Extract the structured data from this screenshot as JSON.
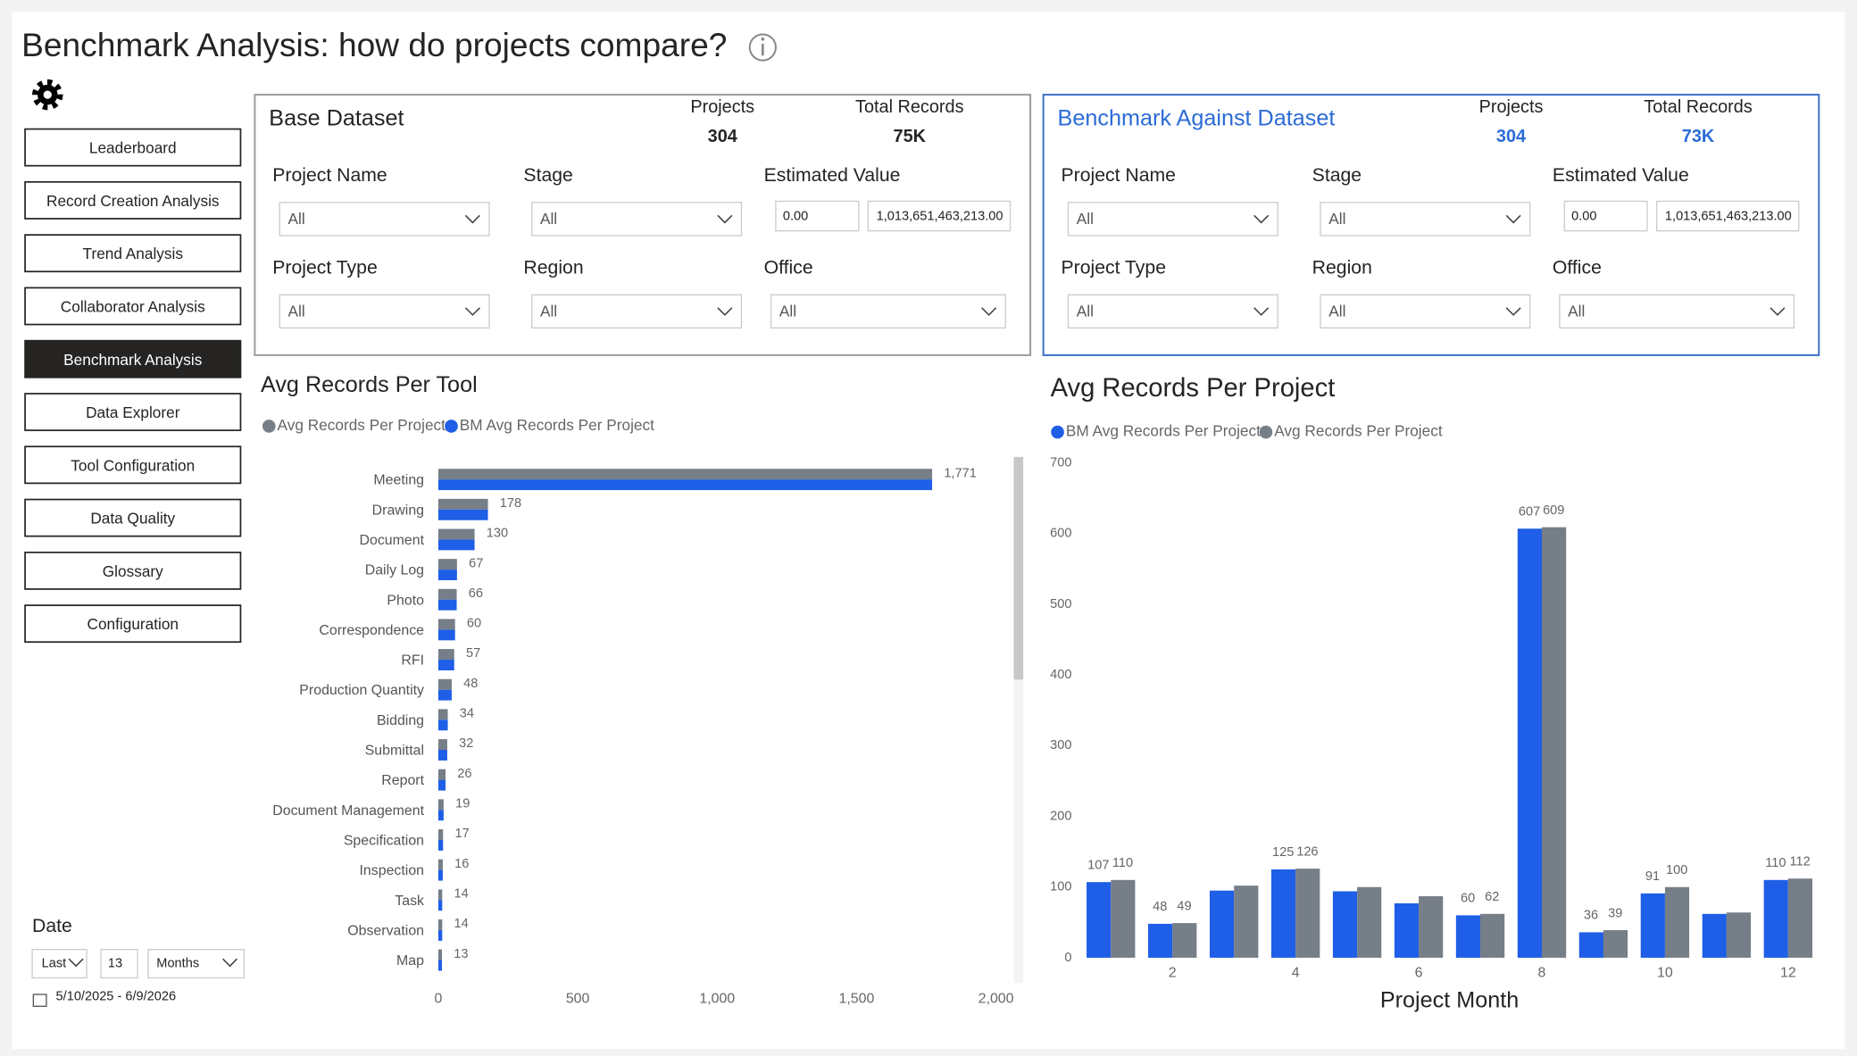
{
  "header": {
    "title": "Benchmark Analysis: how do projects compare?"
  },
  "nav": {
    "items": [
      "Leaderboard",
      "Record Creation Analysis",
      "Trend Analysis",
      "Collaborator Analysis",
      "Benchmark Analysis",
      "Data Explorer",
      "Tool Configuration",
      "Data Quality",
      "Glossary",
      "Configuration"
    ],
    "active": "Benchmark Analysis"
  },
  "date_filter": {
    "label": "Date",
    "mode": "Last",
    "count": "13",
    "unit": "Months",
    "range": "5/10/2025 - 6/9/2026"
  },
  "panels": [
    {
      "title": "Base Dataset",
      "projects_label": "Projects",
      "projects": "304",
      "records_label": "Total Records",
      "records": "75K",
      "filters": [
        {
          "label": "Project Name",
          "value": "All"
        },
        {
          "label": "Stage",
          "value": "All"
        },
        {
          "label": "Estimated Value",
          "min": "0.00",
          "max": "1,013,651,463,213.00"
        },
        {
          "label": "Project Type",
          "value": "All"
        },
        {
          "label": "Region",
          "value": "All"
        },
        {
          "label": "Office",
          "value": "All"
        }
      ]
    },
    {
      "title": "Benchmark Against Dataset",
      "projects_label": "Projects",
      "projects": "304",
      "records_label": "Total Records",
      "records": "73K",
      "filters": [
        {
          "label": "Project Name",
          "value": "All"
        },
        {
          "label": "Stage",
          "value": "All"
        },
        {
          "label": "Estimated Value",
          "min": "0.00",
          "max": "1,013,651,463,213.00"
        },
        {
          "label": "Project Type",
          "value": "All"
        },
        {
          "label": "Region",
          "value": "All"
        },
        {
          "label": "Office",
          "value": "All"
        }
      ]
    }
  ],
  "chart_data": [
    {
      "type": "hbar",
      "title": "Avg Records Per Tool",
      "categories": [
        "Meeting",
        "Drawing",
        "Document",
        "Daily Log",
        "Photo",
        "Correspondence",
        "RFI",
        "Production Quantity",
        "Bidding",
        "Submittal",
        "Report",
        "Document Management",
        "Specification",
        "Inspection",
        "Task",
        "Observation",
        "Map"
      ],
      "series": [
        {
          "name": "Avg Records Per Project",
          "color": "#767e87",
          "values": [
            1771,
            178,
            130,
            67,
            66,
            60,
            57,
            48,
            34,
            32,
            26,
            19,
            17,
            16,
            14,
            14,
            13
          ],
          "value_labels": [
            "1,771",
            "178",
            "130",
            "67",
            "66",
            "60",
            "57",
            "48",
            "34",
            "32",
            "26",
            "19",
            "17",
            "16",
            "14",
            "14",
            "13"
          ]
        },
        {
          "name": "BM Avg Records Per Project",
          "color": "#1f5ee6",
          "values": [
            1771,
            178,
            130,
            67,
            66,
            60,
            57,
            48,
            34,
            32,
            26,
            19,
            17,
            16,
            14,
            14,
            13
          ]
        }
      ],
      "xlim": [
        0,
        2000
      ],
      "xticks": [
        0,
        500,
        {
          "value": 1000,
          "label": "1,000"
        },
        {
          "value": 1500,
          "label": "1,500"
        },
        {
          "value": 2000,
          "label": "2,000"
        }
      ]
    },
    {
      "type": "bar",
      "title": "Avg Records Per Project",
      "x_label": "Project Month",
      "categories": [
        null,
        "2",
        null,
        "4",
        null,
        "6",
        null,
        "8",
        null,
        "10",
        null,
        "12"
      ],
      "series": [
        {
          "name": "BM Avg Records Per Project",
          "color": "#1f5ee6",
          "values": [
            107,
            48,
            95,
            125,
            94,
            77,
            60,
            607,
            36,
            91,
            62,
            110
          ],
          "value_labels": [
            "107",
            "48",
            null,
            "125",
            null,
            null,
            "60",
            "607",
            "36",
            "91",
            null,
            "110"
          ]
        },
        {
          "name": "Avg Records Per Project",
          "color": "#767e87",
          "values": [
            110,
            49,
            102,
            126,
            100,
            87,
            62,
            609,
            39,
            100,
            64,
            112
          ],
          "value_labels": [
            "110",
            "49",
            null,
            "126",
            null,
            null,
            "62",
            "609",
            "39",
            "100",
            null,
            "112"
          ]
        }
      ],
      "ylim": [
        0,
        700
      ],
      "yticks": [
        0,
        100,
        200,
        300,
        400,
        500,
        600,
        700
      ]
    }
  ]
}
